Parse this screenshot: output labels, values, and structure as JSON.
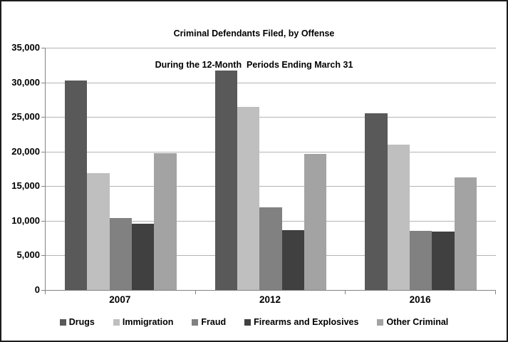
{
  "chart_data": {
    "type": "bar",
    "title_line1": "Criminal Defendants Filed, by Offense",
    "title_line2": "During the 12-Month  Periods Ending March 31",
    "categories": [
      "2007",
      "2012",
      "2016"
    ],
    "series": [
      {
        "name": "Drugs",
        "color": "#595959",
        "values": [
          30300,
          31700,
          25500
        ]
      },
      {
        "name": "Immigration",
        "color": "#bfbfbf",
        "values": [
          16900,
          26500,
          21000
        ]
      },
      {
        "name": "Fraud",
        "color": "#818181",
        "values": [
          10400,
          11900,
          8500
        ]
      },
      {
        "name": "Firearms and Explosives",
        "color": "#404040",
        "values": [
          9600,
          8700,
          8400
        ]
      },
      {
        "name": "Other Criminal",
        "color": "#a3a3a3",
        "values": [
          19800,
          19700,
          16300
        ]
      }
    ],
    "ylim": [
      0,
      35000
    ],
    "ytick_step": 5000,
    "ytick_labels": [
      "0",
      "5,000",
      "10,000",
      "15,000",
      "20,000",
      "25,000",
      "30,000",
      "35,000"
    ],
    "grid": true,
    "legend_position": "bottom"
  }
}
